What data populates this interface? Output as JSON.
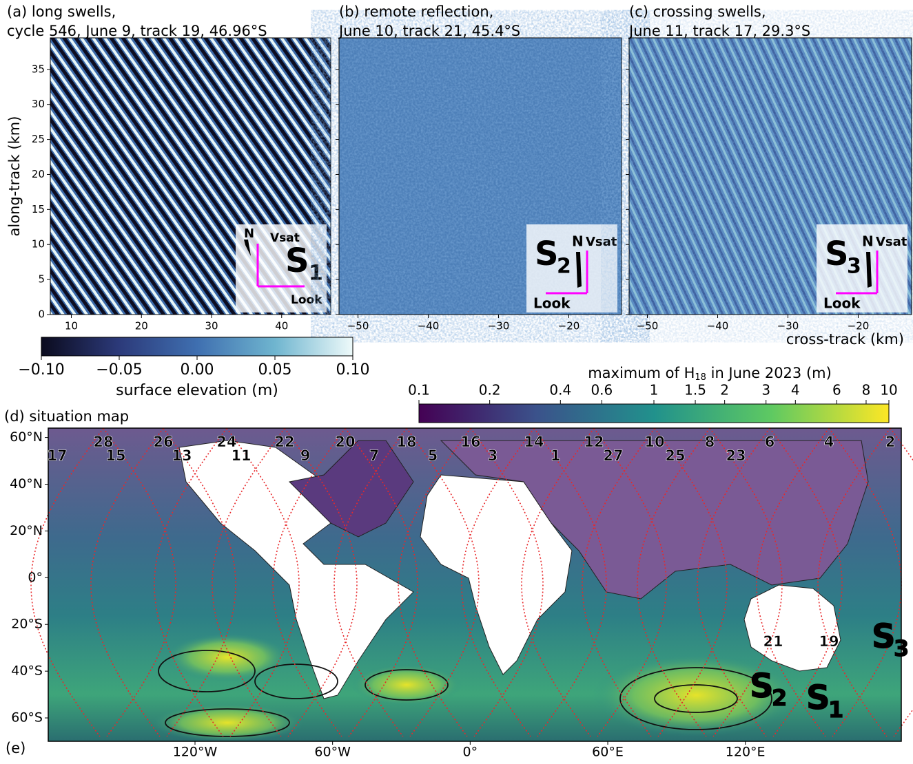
{
  "panels": [
    {
      "title": [
        "(a) long swells,",
        "cycle 546, June 9, track 19, 46.96°S"
      ],
      "xlim": [
        7,
        47
      ],
      "xticks": [
        10,
        20,
        30,
        40
      ],
      "ylim": [
        0,
        39.5
      ],
      "yticks": [
        0,
        5,
        10,
        15,
        20,
        25,
        30,
        35
      ],
      "ylabel": "along-track (km)",
      "inset": {
        "label": "S",
        "sub": "1",
        "north": "N",
        "vsat": "Vsat",
        "look": "Look"
      }
    },
    {
      "title": [
        "(b) remote reflection,",
        "June 10, track 21, 45.4°S"
      ],
      "xlim": [
        -52.7,
        -12.5
      ],
      "xticks": [
        {
          "value": -50,
          "label": "−50"
        },
        {
          "value": -40,
          "label": "−40"
        },
        {
          "value": -30,
          "label": "−30"
        },
        {
          "value": -20,
          "label": "−20"
        }
      ],
      "ylim": [
        0,
        39.5
      ],
      "yticks": [
        0,
        5,
        10,
        15,
        20,
        25,
        30,
        35
      ],
      "inset": {
        "label": "S",
        "sub": "2",
        "north": "N",
        "vsat": "Vsat",
        "look": "Look"
      }
    },
    {
      "title": [
        "(c) crossing swells,",
        "June 11, track 17, 29.3°S"
      ],
      "xlim": [
        -52.6,
        -12.4
      ],
      "xticks": [
        {
          "value": -50,
          "label": "−50"
        },
        {
          "value": -40,
          "label": "−40"
        },
        {
          "value": -30,
          "label": "−30"
        },
        {
          "value": -20,
          "label": "−20"
        }
      ],
      "ylim": [
        0,
        39.5
      ],
      "yticks": [
        0,
        5,
        10,
        15,
        20,
        25,
        30,
        35
      ],
      "xlabel": "cross-track (km)",
      "inset": {
        "label": "S",
        "sub": "3",
        "north": "N",
        "vsat": "Vsat",
        "look": "Look"
      }
    }
  ],
  "colorbar1": {
    "label": "surface elevation (m)",
    "lim": [
      -0.1,
      0.1
    ],
    "ticks": [
      {
        "value": -0.1,
        "label": "−0.10"
      },
      {
        "value": -0.05,
        "label": "−0.05"
      },
      {
        "value": 0,
        "label": "0.00"
      },
      {
        "value": 0.05,
        "label": "0.05"
      },
      {
        "value": 0.1,
        "label": "0.10"
      }
    ]
  },
  "colorbar2": {
    "label": [
      "maximum of H",
      "18",
      " in June 2023 (m)"
    ],
    "log": true,
    "lim": [
      0.1,
      10
    ],
    "ticks": [
      0.1,
      0.2,
      0.4,
      0.6,
      1,
      1.5,
      2,
      3,
      4,
      6,
      8,
      10
    ]
  },
  "map": {
    "title": "(d) situation map",
    "footer": "(e)",
    "xlim": [
      -184,
      188
    ],
    "ylim": [
      -70,
      64
    ],
    "xticks": [
      {
        "value": -120,
        "label": "120°W"
      },
      {
        "value": -60,
        "label": "60°W"
      },
      {
        "value": 0,
        "label": "0°"
      },
      {
        "value": 60,
        "label": "60°E"
      },
      {
        "value": 120,
        "label": "120°E"
      }
    ],
    "yticks": [
      {
        "value": 60,
        "label": "60°N"
      },
      {
        "value": 40,
        "label": "40°N"
      },
      {
        "value": 20,
        "label": "20°N"
      },
      {
        "value": 0,
        "label": "0°"
      },
      {
        "value": -20,
        "label": "20°S"
      },
      {
        "value": -40,
        "label": "40°S"
      },
      {
        "value": -60,
        "label": "60°S"
      }
    ],
    "tracks_top": [
      "28",
      "26",
      "24",
      "22",
      "20",
      "18",
      "16",
      "14",
      "12",
      "10",
      "8",
      "6",
      "4",
      "2"
    ],
    "tracks_second": [
      "17",
      "15",
      "13",
      "11",
      "9",
      "7",
      "5",
      "3",
      "1",
      "27",
      "25",
      "23"
    ],
    "tracks_south": [
      "21",
      "19"
    ],
    "sites": [
      {
        "label": "S",
        "sub": "2"
      },
      {
        "label": "S",
        "sub": "1"
      },
      {
        "label": "S",
        "sub": "3"
      }
    ]
  }
}
